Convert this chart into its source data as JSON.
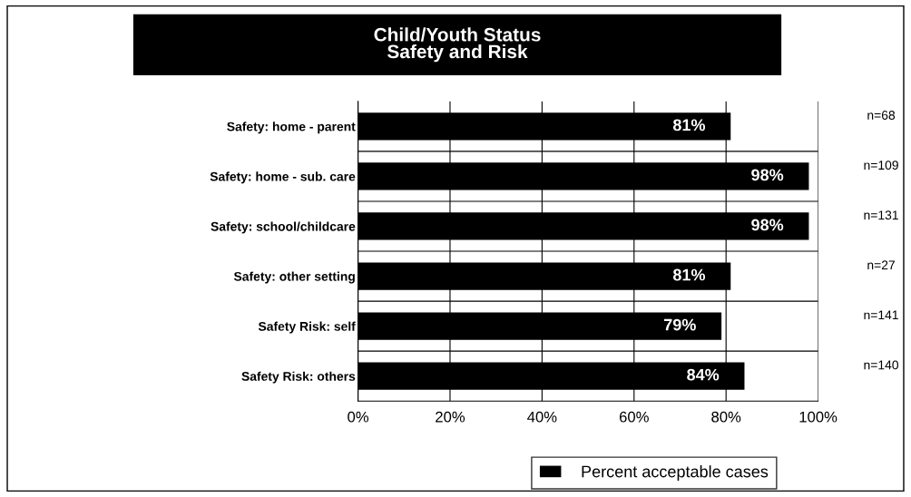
{
  "chart_data": {
    "type": "bar",
    "orientation": "horizontal",
    "title": "Child/Youth Status\nSafety and Risk",
    "categories": [
      "Safety: home - parent",
      "Safety: home - sub. care",
      "Safety: school/childcare",
      "Safety: other setting",
      "Safety Risk: self",
      "Safety Risk: others"
    ],
    "series": [
      {
        "name": "Percent acceptable cases",
        "color": "#000000",
        "values": [
          81,
          98,
          98,
          81,
          79,
          84
        ],
        "value_labels": [
          "81%",
          "98%",
          "98%",
          "81%",
          "79%",
          "84%"
        ]
      }
    ],
    "xlim": [
      0,
      100
    ],
    "xticks": [
      {
        "value": 0,
        "label": "0%"
      },
      {
        "value": 20,
        "label": "20%"
      },
      {
        "value": 40,
        "label": "40%"
      },
      {
        "value": 60,
        "label": "60%"
      },
      {
        "value": 80,
        "label": "80%"
      },
      {
        "value": 100,
        "label": "100%"
      }
    ],
    "grid": true,
    "legend": "bottom",
    "annotations": [
      "n=68",
      "n=109",
      "n=131",
      "n=27",
      "n=141",
      "n=140"
    ]
  }
}
